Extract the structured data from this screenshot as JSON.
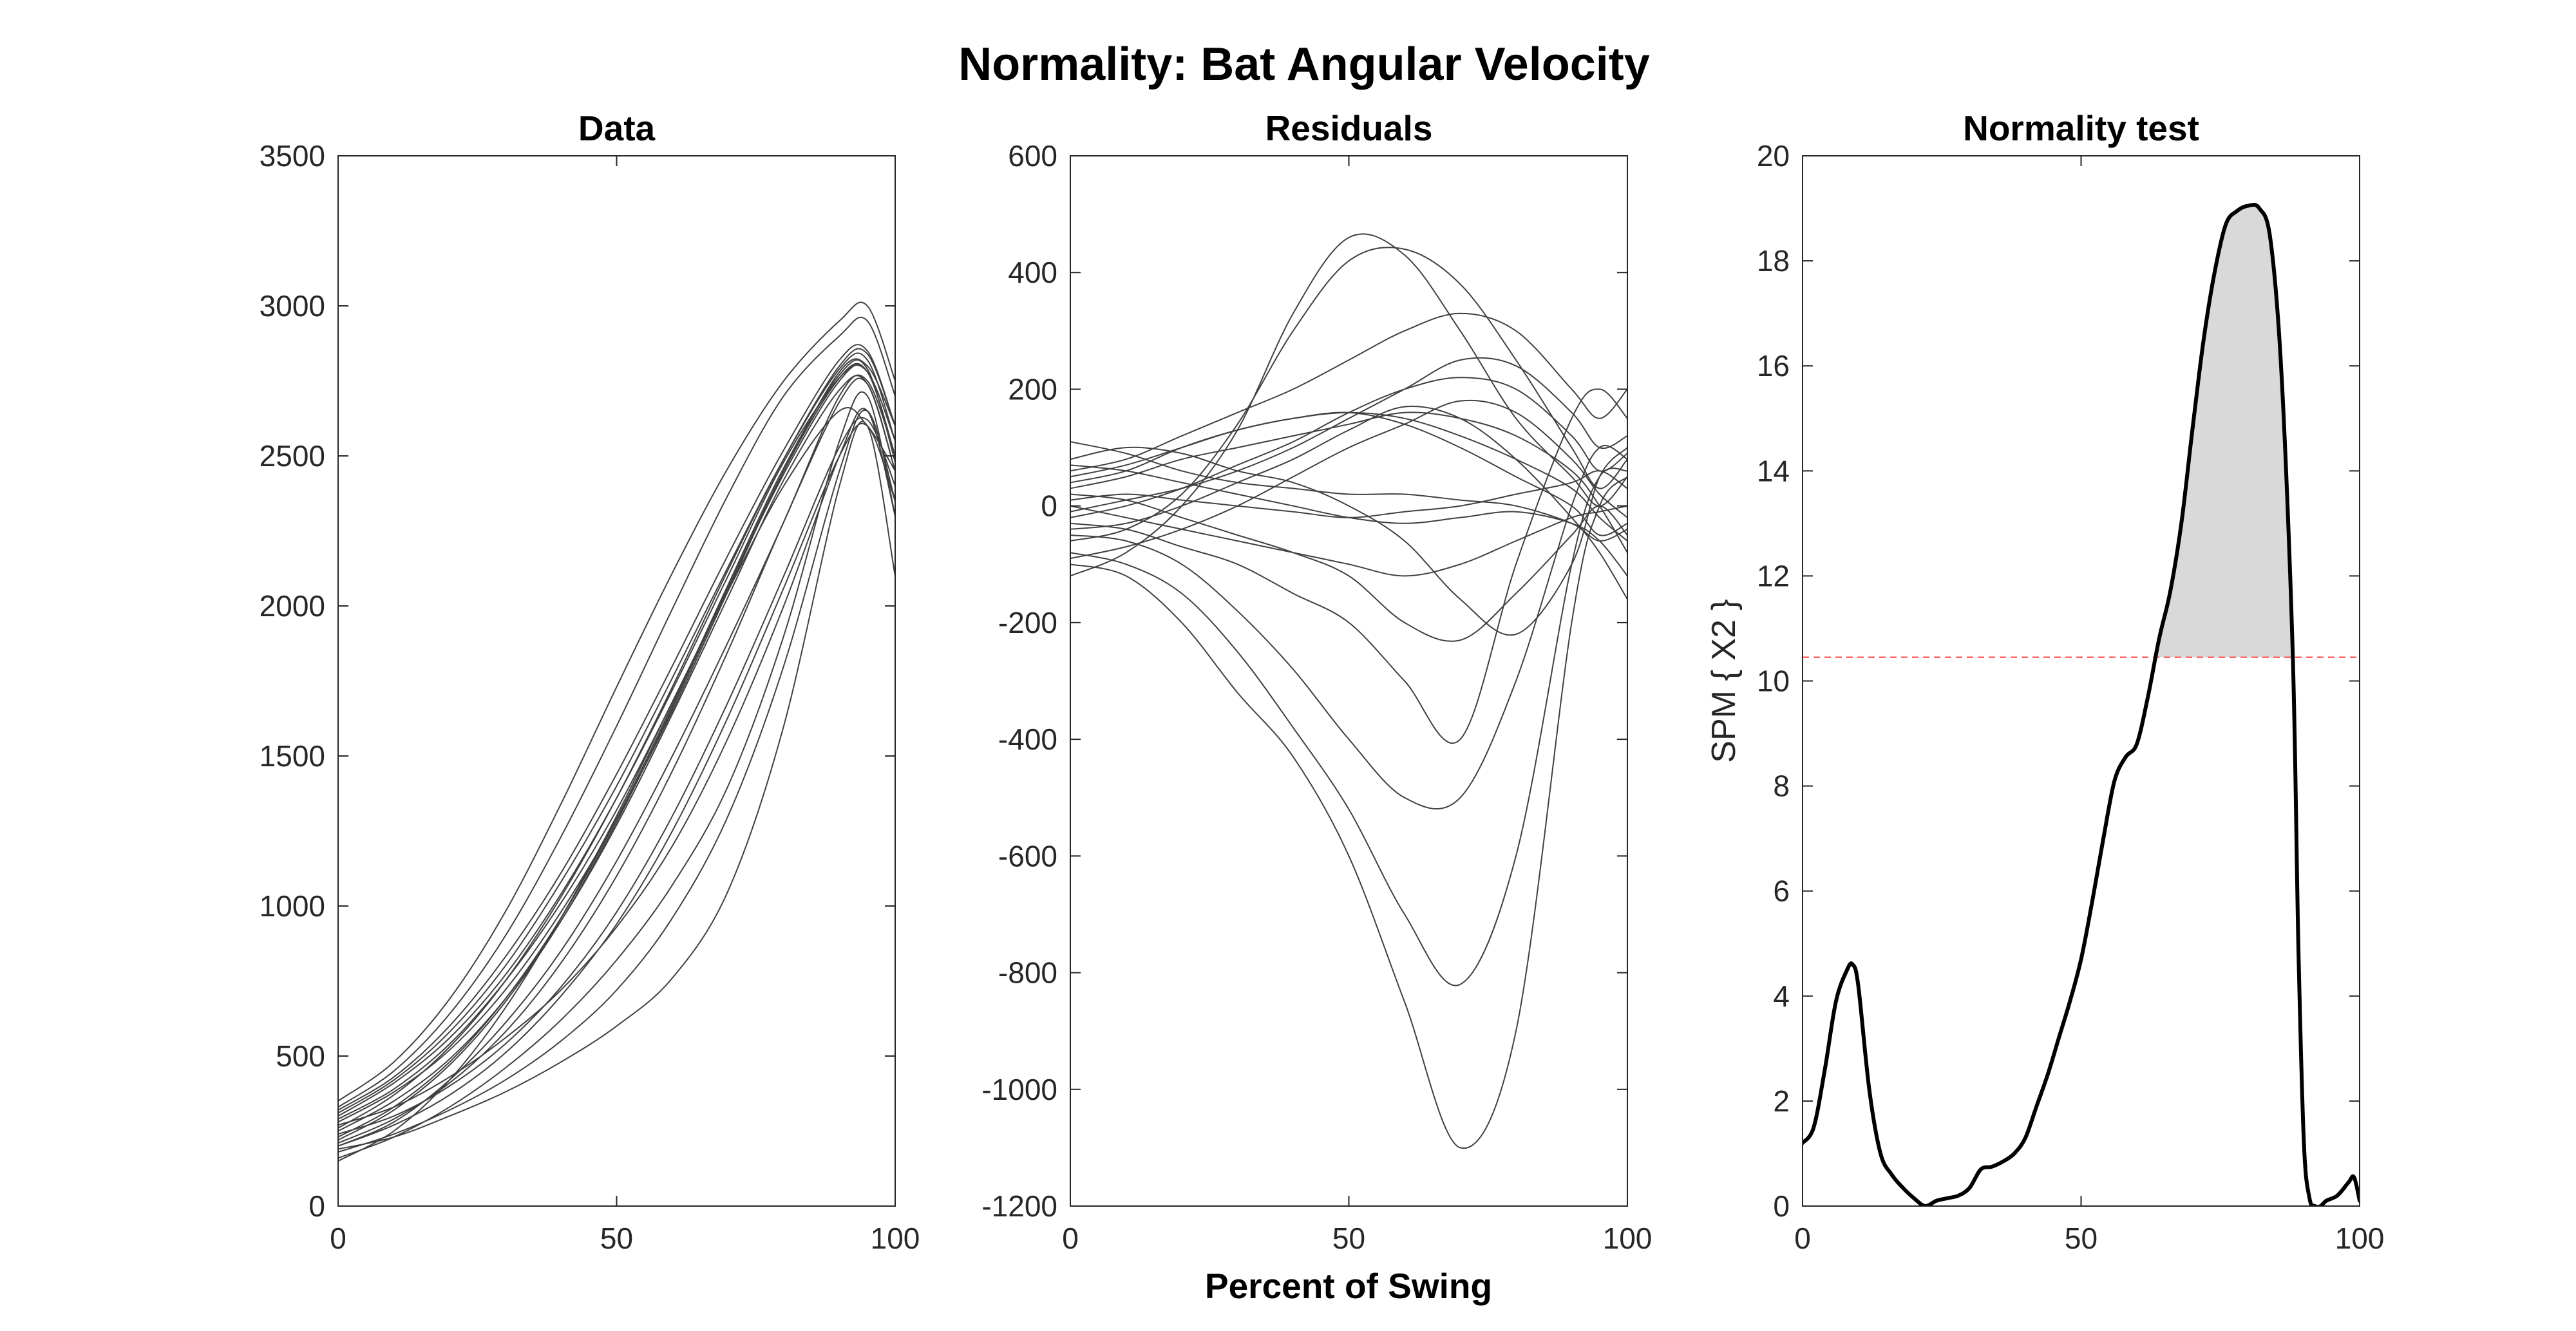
{
  "figure": {
    "title": "Normality: Bat Angular Velocity",
    "shared_xlabel": "Percent of Swing"
  },
  "chart_data": [
    {
      "type": "line",
      "title": "Data",
      "xlabel": "",
      "ylabel": "",
      "xlim": [
        0,
        100
      ],
      "ylim": [
        0,
        3500
      ],
      "xticks": [
        0,
        50,
        100
      ],
      "yticks": [
        0,
        500,
        1000,
        1500,
        2000,
        2500,
        3000,
        3500
      ],
      "grid": false,
      "line_color": "#404040",
      "x": [
        0,
        10,
        20,
        30,
        40,
        50,
        60,
        70,
        80,
        90,
        95,
        100
      ],
      "series": [
        {
          "values": [
            150,
            250,
            420,
            660,
            960,
            1300,
            1680,
            2050,
            2400,
            2650,
            2600,
            2450
          ]
        },
        {
          "values": [
            200,
            280,
            420,
            610,
            850,
            1150,
            1500,
            1880,
            2280,
            2700,
            2750,
            2500
          ]
        },
        {
          "values": [
            160,
            230,
            330,
            460,
            620,
            820,
            1070,
            1400,
            1900,
            2550,
            2700,
            2300
          ]
        },
        {
          "values": [
            190,
            230,
            300,
            380,
            480,
            600,
            760,
            1050,
            1600,
            2400,
            2600,
            2100
          ]
        },
        {
          "values": [
            280,
            380,
            520,
            720,
            980,
            1290,
            1650,
            2050,
            2450,
            2780,
            2800,
            2600
          ]
        },
        {
          "values": [
            300,
            410,
            560,
            770,
            1040,
            1360,
            1720,
            2100,
            2480,
            2760,
            2780,
            2550
          ]
        },
        {
          "values": [
            330,
            450,
            640,
            900,
            1230,
            1600,
            1990,
            2370,
            2700,
            2900,
            2950,
            2700
          ]
        },
        {
          "values": [
            250,
            350,
            490,
            690,
            950,
            1270,
            1640,
            2030,
            2420,
            2720,
            2740,
            2450
          ]
        },
        {
          "values": [
            270,
            330,
            430,
            560,
            720,
            930,
            1200,
            1560,
            2000,
            2500,
            2650,
            2300
          ]
        },
        {
          "values": [
            240,
            300,
            400,
            540,
            730,
            980,
            1300,
            1680,
            2100,
            2530,
            2620,
            2400
          ]
        },
        {
          "values": [
            350,
            480,
            690,
            980,
            1340,
            1730,
            2110,
            2460,
            2750,
            2950,
            3000,
            2750
          ]
        },
        {
          "values": [
            220,
            320,
            470,
            680,
            950,
            1280,
            1660,
            2060,
            2450,
            2760,
            2780,
            2500
          ]
        },
        {
          "values": [
            200,
            270,
            370,
            510,
            700,
            940,
            1250,
            1630,
            2060,
            2500,
            2600,
            2350
          ]
        },
        {
          "values": [
            310,
            420,
            580,
            800,
            1080,
            1400,
            1760,
            2130,
            2490,
            2790,
            2820,
            2550
          ]
        },
        {
          "values": [
            180,
            240,
            320,
            420,
            550,
            720,
            960,
            1300,
            1800,
            2450,
            2650,
            2350
          ]
        },
        {
          "values": [
            260,
            370,
            530,
            750,
            1030,
            1360,
            1730,
            2120,
            2490,
            2800,
            2840,
            2600
          ]
        },
        {
          "values": [
            290,
            390,
            540,
            750,
            1010,
            1320,
            1680,
            2060,
            2440,
            2750,
            2780,
            2500
          ]
        },
        {
          "values": [
            230,
            330,
            480,
            690,
            960,
            1290,
            1670,
            2070,
            2460,
            2770,
            2790,
            2480
          ]
        },
        {
          "values": [
            320,
            430,
            600,
            830,
            1110,
            1440,
            1800,
            2170,
            2520,
            2820,
            2850,
            2600
          ]
        },
        {
          "values": [
            210,
            290,
            410,
            580,
            810,
            1100,
            1450,
            1850,
            2280,
            2680,
            2740,
            2450
          ]
        }
      ]
    },
    {
      "type": "line",
      "title": "Residuals",
      "xlabel": "Percent of Swing",
      "ylabel": "",
      "xlim": [
        0,
        100
      ],
      "ylim": [
        -1200,
        600
      ],
      "xticks": [
        0,
        50,
        100
      ],
      "yticks": [
        -1200,
        -1000,
        -800,
        -600,
        -400,
        -200,
        0,
        200,
        400,
        600
      ],
      "grid": false,
      "line_color": "#404040",
      "x": [
        0,
        10,
        20,
        30,
        40,
        50,
        60,
        70,
        80,
        90,
        95,
        100
      ],
      "series": [
        {
          "values": [
            -120,
            -80,
            0,
            130,
            330,
            460,
            430,
            300,
            150,
            50,
            0,
            50
          ]
        },
        {
          "values": [
            -60,
            -40,
            20,
            140,
            300,
            420,
            440,
            380,
            250,
            100,
            30,
            80
          ]
        },
        {
          "values": [
            -100,
            -120,
            -200,
            -320,
            -430,
            -600,
            -850,
            -1100,
            -900,
            -200,
            0,
            50
          ]
        },
        {
          "values": [
            -80,
            -100,
            -150,
            -250,
            -380,
            -520,
            -700,
            -820,
            -600,
            -100,
            50,
            60
          ]
        },
        {
          "values": [
            -50,
            -60,
            -100,
            -180,
            -280,
            -400,
            -500,
            -500,
            -300,
            0,
            100,
            80
          ]
        },
        {
          "values": [
            -30,
            -40,
            -70,
            -100,
            -150,
            -200,
            -300,
            -400,
            -100,
            150,
            200,
            150
          ]
        },
        {
          "values": [
            40,
            60,
            100,
            130,
            150,
            160,
            140,
            100,
            50,
            0,
            -50,
            -30
          ]
        },
        {
          "values": [
            80,
            100,
            90,
            60,
            40,
            0,
            -60,
            -160,
            -220,
            -100,
            50,
            100
          ]
        },
        {
          "values": [
            -20,
            0,
            30,
            70,
            110,
            160,
            200,
            220,
            200,
            120,
            60,
            90
          ]
        },
        {
          "values": [
            20,
            10,
            -20,
            -50,
            -80,
            -120,
            -200,
            -230,
            -150,
            -50,
            0,
            -50
          ]
        },
        {
          "values": [
            60,
            80,
            120,
            160,
            200,
            250,
            300,
            330,
            300,
            200,
            150,
            200
          ]
        },
        {
          "values": [
            -10,
            10,
            30,
            60,
            100,
            150,
            200,
            250,
            240,
            160,
            100,
            120
          ]
        },
        {
          "values": [
            110,
            90,
            60,
            40,
            30,
            20,
            20,
            10,
            0,
            -30,
            -60,
            -40
          ]
        },
        {
          "values": [
            0,
            -20,
            -40,
            -60,
            -80,
            -100,
            -120,
            -100,
            -60,
            -20,
            -10,
            0
          ]
        },
        {
          "values": [
            30,
            50,
            80,
            100,
            120,
            140,
            160,
            150,
            120,
            60,
            0,
            -80
          ]
        },
        {
          "values": [
            -40,
            -30,
            0,
            40,
            80,
            130,
            170,
            150,
            80,
            -20,
            -80,
            -160
          ]
        },
        {
          "values": [
            70,
            60,
            40,
            20,
            0,
            -20,
            -30,
            -20,
            -10,
            -30,
            -60,
            -120
          ]
        },
        {
          "values": [
            -90,
            -70,
            -40,
            0,
            50,
            100,
            140,
            180,
            160,
            80,
            20,
            -20
          ]
        },
        {
          "values": [
            50,
            70,
            100,
            130,
            150,
            160,
            150,
            120,
            80,
            30,
            -20,
            -60
          ]
        },
        {
          "values": [
            10,
            20,
            10,
            0,
            -10,
            -20,
            -10,
            0,
            20,
            40,
            60,
            30
          ]
        }
      ]
    },
    {
      "type": "line",
      "title": "Normality test",
      "xlabel": "",
      "ylabel": "SPM { X2 }",
      "xlim": [
        0,
        100
      ],
      "ylim": [
        0,
        20
      ],
      "xticks": [
        0,
        50,
        100
      ],
      "yticks": [
        0,
        2,
        4,
        6,
        8,
        10,
        12,
        14,
        16,
        18,
        20
      ],
      "grid": false,
      "threshold": 10.45,
      "threshold_color": "#ff6666",
      "fill_color": "#d9d9d9",
      "line_color": "#000000",
      "series": [
        {
          "x": [
            0,
            2,
            4,
            6,
            8,
            9,
            10,
            12,
            14,
            16,
            18,
            20,
            22,
            24,
            26,
            28,
            30,
            32,
            34,
            36,
            38,
            40,
            42,
            44,
            46,
            48,
            50,
            52,
            54,
            56,
            58,
            60,
            62,
            64,
            66,
            68,
            70,
            72,
            74,
            76,
            78,
            80,
            82,
            84,
            86,
            88,
            89,
            90,
            91,
            92,
            93,
            94,
            96,
            98,
            99,
            100
          ],
          "values": [
            1.2,
            1.5,
            2.6,
            3.9,
            4.5,
            4.6,
            4.2,
            2.2,
            1.0,
            0.6,
            0.35,
            0.15,
            0.0,
            0.1,
            0.15,
            0.2,
            0.35,
            0.7,
            0.75,
            0.85,
            1.0,
            1.3,
            1.9,
            2.5,
            3.2,
            3.9,
            4.7,
            5.8,
            7.0,
            8.1,
            8.55,
            8.8,
            9.7,
            10.8,
            11.7,
            13.0,
            14.8,
            16.5,
            17.8,
            18.7,
            18.95,
            19.05,
            19.0,
            18.4,
            15.8,
            10.5,
            5.0,
            1.2,
            0.15,
            0.0,
            0.0,
            0.1,
            0.2,
            0.45,
            0.55,
            0.1
          ]
        }
      ]
    }
  ]
}
